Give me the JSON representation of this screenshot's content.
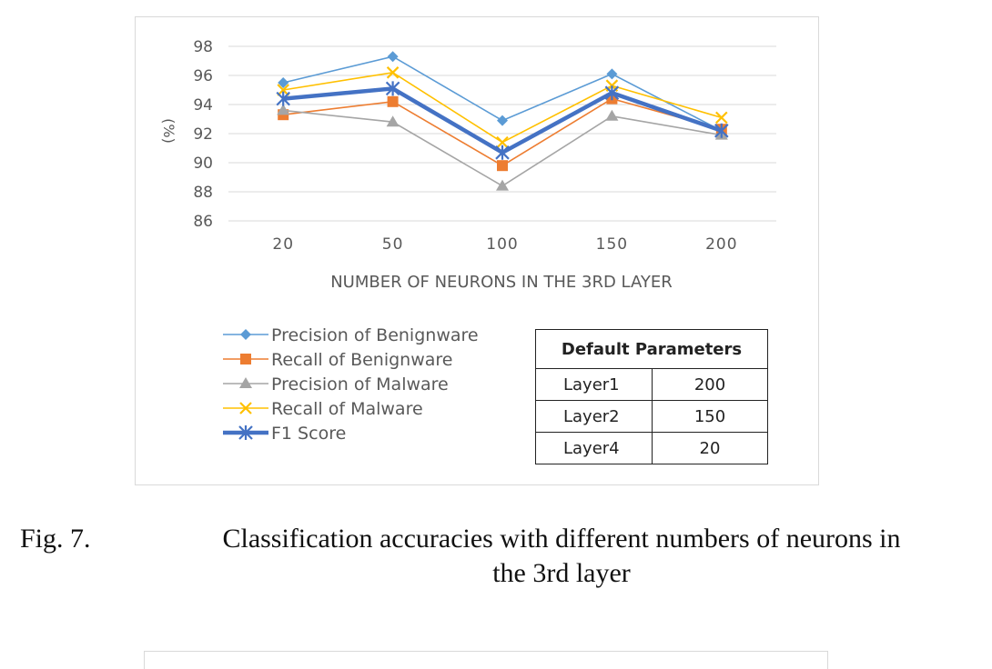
{
  "chart_data": {
    "type": "line",
    "title": "",
    "xlabel": "NUMBER OF NEURONS IN THE 3RD LAYER",
    "ylabel": "(%)",
    "categories": [
      "20",
      "50",
      "100",
      "150",
      "200"
    ],
    "ylim": [
      86,
      98
    ],
    "yticks": [
      "98",
      "96",
      "94",
      "92",
      "90",
      "88",
      "86"
    ],
    "grid": true,
    "legend_position": "bottom-left",
    "series": [
      {
        "name": "Precision of Benignware",
        "values": [
          95.5,
          97.3,
          92.9,
          96.1,
          92.2
        ],
        "color": "#5b9bd5",
        "marker": "diamond"
      },
      {
        "name": "Recall of Benignware",
        "values": [
          93.3,
          94.2,
          89.8,
          94.4,
          92.3
        ],
        "color": "#ed7d31",
        "marker": "square"
      },
      {
        "name": "Precision of Malware",
        "values": [
          93.6,
          92.8,
          88.4,
          93.2,
          91.9
        ],
        "color": "#a5a5a5",
        "marker": "triangle"
      },
      {
        "name": "Recall of Malware",
        "values": [
          95.0,
          96.2,
          91.4,
          95.3,
          93.1
        ],
        "color": "#ffc000",
        "marker": "x"
      },
      {
        "name": "F1 Score",
        "values": [
          94.4,
          95.1,
          90.7,
          94.8,
          92.2
        ],
        "color": "#4472c4",
        "marker": "star",
        "bold": true
      }
    ]
  },
  "table": {
    "header": "Default Parameters",
    "rows": [
      {
        "key": "Layer1",
        "value": "200"
      },
      {
        "key": "Layer2",
        "value": "150"
      },
      {
        "key": "Layer4",
        "value": "20"
      }
    ]
  },
  "caption": {
    "number": "Fig. 7.",
    "text_line1": "Classification accuracies with different numbers of neurons in",
    "text_line2": "the 3rd layer"
  }
}
